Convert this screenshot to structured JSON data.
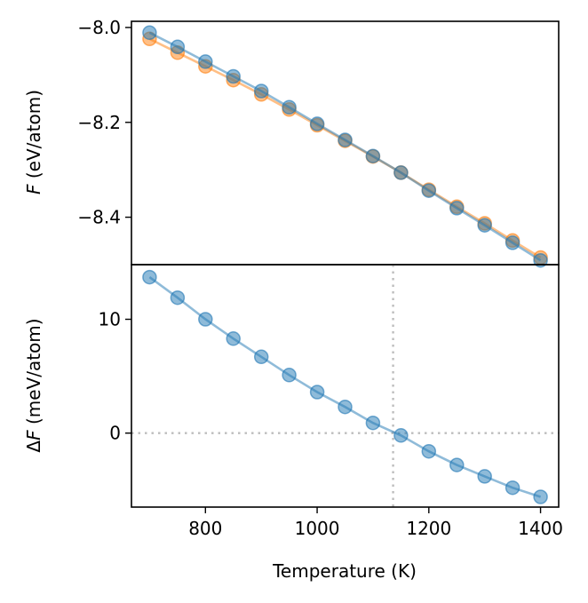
{
  "chart_data": [
    {
      "type": "line",
      "xlabel": "",
      "ylabel": "F (eV/atom)",
      "ylabel_parts": [
        "F",
        " (eV/atom)"
      ],
      "xlim": [
        667.5,
        1432.5
      ],
      "ylim": [
        -8.5,
        -7.987
      ],
      "yticks": [
        -8.0,
        -8.2,
        -8.4
      ],
      "ytick_labels": [
        "−8.0",
        "−8.2",
        "−8.4"
      ],
      "grid": false,
      "x": [
        700,
        750,
        800,
        850,
        900,
        950,
        1000,
        1050,
        1100,
        1150,
        1200,
        1250,
        1300,
        1350,
        1400
      ],
      "series": [
        {
          "color": "#ff7f0e",
          "values": [
            -8.024,
            -8.053,
            -8.082,
            -8.111,
            -8.141,
            -8.173,
            -8.206,
            -8.239,
            -8.272,
            -8.306,
            -8.342,
            -8.378,
            -8.413,
            -8.449,
            -8.485
          ]
        },
        {
          "color": "#1f77b4",
          "values": [
            -8.011,
            -8.041,
            -8.072,
            -8.103,
            -8.134,
            -8.168,
            -8.203,
            -8.237,
            -8.271,
            -8.306,
            -8.344,
            -8.381,
            -8.417,
            -8.454,
            -8.491
          ]
        }
      ]
    },
    {
      "type": "line",
      "xlabel": "Temperature (K)",
      "ylabel": "ΔF (meV/atom)",
      "ylabel_parts": [
        "Δ",
        "F",
        " (meV/atom)"
      ],
      "xlim": [
        667.5,
        1432.5
      ],
      "ylim": [
        -6.5,
        14.8
      ],
      "xticks": [
        800,
        1000,
        1200,
        1400
      ],
      "xtick_labels": [
        "800",
        "1000",
        "1200",
        "1400"
      ],
      "yticks": [
        0,
        10
      ],
      "ytick_labels": [
        "0",
        "10"
      ],
      "grid": false,
      "reference_lines": {
        "y": 0,
        "x": 1136
      },
      "x": [
        700,
        750,
        800,
        850,
        900,
        950,
        1000,
        1050,
        1100,
        1150,
        1200,
        1250,
        1300,
        1350,
        1400
      ],
      "series": [
        {
          "color": "#1f77b4",
          "values": [
            13.7,
            11.9,
            10.0,
            8.3,
            6.7,
            5.1,
            3.6,
            2.3,
            0.9,
            -0.2,
            -1.6,
            -2.8,
            -3.8,
            -4.8,
            -5.6
          ]
        }
      ]
    }
  ]
}
